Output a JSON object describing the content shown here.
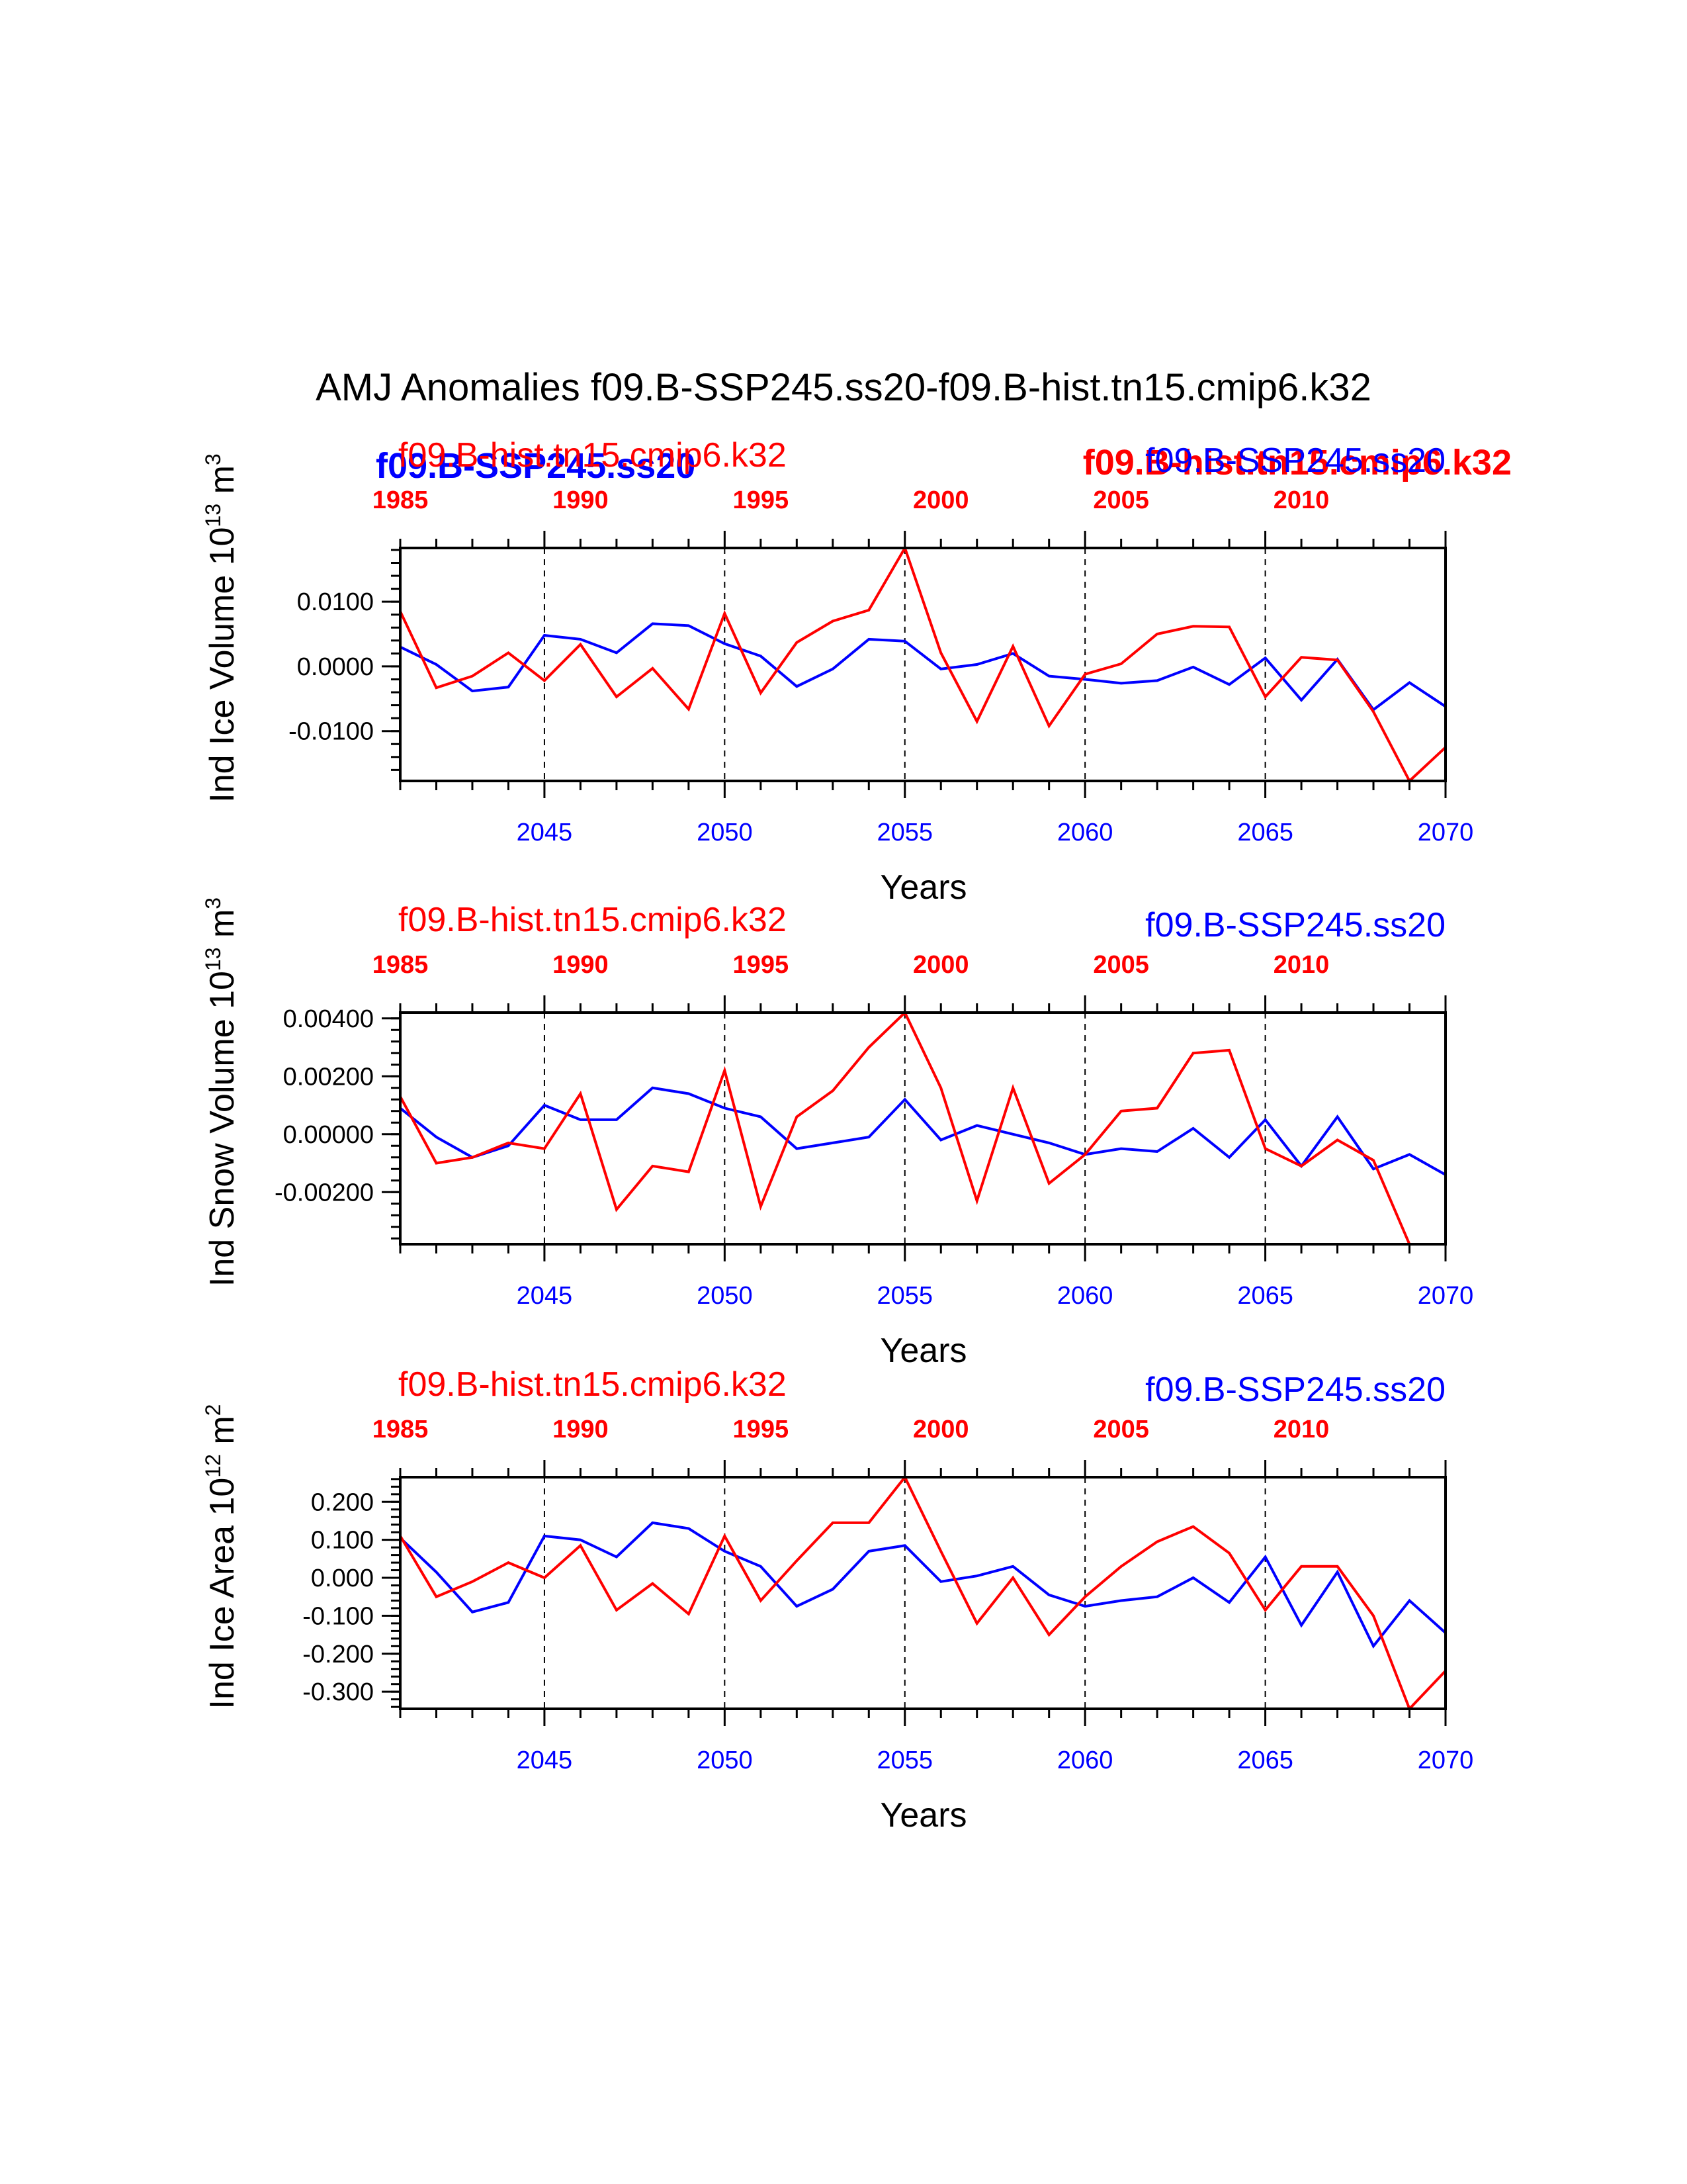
{
  "page_title": "AMJ Anomalies f09.B-SSP245.ss20-f09.B-hist.tn15.cmip6.k32",
  "colors": {
    "exp_a": "#0000ff",
    "exp_b": "#ff0000",
    "axis": "#000000"
  },
  "overlay_labels": {
    "blue_bold": "f09.B-SSP245.ss20",
    "red_bold": "f09.B-hist.tn15.cmip6.k32"
  },
  "chart_data": [
    {
      "type": "line",
      "ylabel": "Ind Ice Volume 10",
      "ylabel_exp": "13",
      "ylabel_unit": " m",
      "ylabel_unit_exp": "3",
      "xlabel": "Years",
      "top_left_label": "f09.B-hist.tn15.cmip6.k32",
      "top_right_label": "f09.B-SSP245.ss20",
      "x": [
        2041,
        2042,
        2043,
        2044,
        2045,
        2046,
        2047,
        2048,
        2049,
        2050,
        2051,
        2052,
        2053,
        2054,
        2055,
        2056,
        2057,
        2058,
        2059,
        2060,
        2061,
        2062,
        2063,
        2064,
        2065,
        2066,
        2067,
        2068,
        2069,
        2070
      ],
      "xlim": [
        2041,
        2070
      ],
      "xticks": [
        2045,
        2050,
        2055,
        2060,
        2065,
        2070
      ],
      "xticklabels": [
        "2045",
        "2050",
        "2055",
        "2060",
        "2065",
        "2070"
      ],
      "top_ticks": [
        1985,
        1990,
        1995,
        2000,
        2005,
        2010
      ],
      "top_ticklabels": [
        "1985",
        "1990",
        "1995",
        "2000",
        "2005",
        "2010"
      ],
      "top_offset": 56,
      "ylim": [
        -0.0177,
        0.0183
      ],
      "yticks": [
        -0.01,
        0.0,
        0.01
      ],
      "yticklabels": [
        "-0.0100",
        "0.0000",
        "0.0100"
      ],
      "yminor": 0.002,
      "series": [
        {
          "name": "f09.B-SSP245.ss20",
          "color": "#0000ff",
          "values": [
            0.003,
            0.0003,
            -0.0038,
            -0.0032,
            0.0048,
            0.0042,
            0.0021,
            0.0066,
            0.0063,
            0.0035,
            0.0016,
            -0.0031,
            -0.0004,
            0.0042,
            0.0039,
            -0.0004,
            0.0003,
            0.002,
            -0.0015,
            -0.002,
            -0.0026,
            -0.0022,
            -0.0001,
            -0.0028,
            0.0013,
            -0.0052,
            0.0011,
            -0.0067,
            -0.0025,
            -0.0062
          ]
        },
        {
          "name": "f09.B-hist.tn15.cmip6.k32",
          "color": "#ff0000",
          "values": [
            0.0085,
            -0.0033,
            -0.0015,
            0.0021,
            -0.0022,
            0.0034,
            -0.0047,
            -0.0003,
            -0.0066,
            0.0082,
            -0.0041,
            0.0037,
            0.007,
            0.0087,
            0.0183,
            0.0021,
            -0.0085,
            0.0031,
            -0.0092,
            -0.0012,
            0.0004,
            0.005,
            0.0062,
            0.0061,
            -0.0047,
            0.0014,
            0.001,
            -0.007,
            -0.0177,
            -0.0125
          ]
        }
      ]
    },
    {
      "type": "line",
      "ylabel": "Ind Snow Volume 10",
      "ylabel_exp": "13",
      "ylabel_unit": " m",
      "ylabel_unit_exp": "3",
      "xlabel": "Years",
      "top_left_label": "f09.B-hist.tn15.cmip6.k32",
      "top_right_label": "f09.B-SSP245.ss20",
      "x": [
        2041,
        2042,
        2043,
        2044,
        2045,
        2046,
        2047,
        2048,
        2049,
        2050,
        2051,
        2052,
        2053,
        2054,
        2055,
        2056,
        2057,
        2058,
        2059,
        2060,
        2061,
        2062,
        2063,
        2064,
        2065,
        2066,
        2067,
        2068,
        2069,
        2070
      ],
      "xlim": [
        2041,
        2070
      ],
      "xticks": [
        2045,
        2050,
        2055,
        2060,
        2065,
        2070
      ],
      "xticklabels": [
        "2045",
        "2050",
        "2055",
        "2060",
        "2065",
        "2070"
      ],
      "top_ticks": [
        1985,
        1990,
        1995,
        2000,
        2005,
        2010
      ],
      "top_ticklabels": [
        "1985",
        "1990",
        "1995",
        "2000",
        "2005",
        "2010"
      ],
      "top_offset": 56,
      "ylim": [
        -0.0038,
        0.0042
      ],
      "yticks": [
        -0.002,
        0.0,
        0.002,
        0.004
      ],
      "yticklabels": [
        "-0.00200",
        "0.00000",
        "0.00200",
        "0.00400"
      ],
      "yminor": 0.0004,
      "series": [
        {
          "name": "f09.B-SSP245.ss20",
          "color": "#0000ff",
          "values": [
            0.0009,
            -0.0001,
            -0.0008,
            -0.0004,
            0.001,
            0.0005,
            0.0005,
            0.0016,
            0.0014,
            0.0009,
            0.0006,
            -0.0005,
            -0.0003,
            -0.0001,
            0.0012,
            -0.0002,
            0.0003,
            0.0,
            -0.0003,
            -0.0007,
            -0.0005,
            -0.0006,
            0.0002,
            -0.0008,
            0.0005,
            -0.0011,
            0.0006,
            -0.0012,
            -0.0007,
            -0.0014
          ]
        },
        {
          "name": "f09.B-hist.tn15.cmip6.k32",
          "color": "#ff0000",
          "values": [
            0.0013,
            -0.001,
            -0.0008,
            -0.0003,
            -0.0005,
            0.0014,
            -0.0026,
            -0.0011,
            -0.0013,
            0.0022,
            -0.0025,
            0.0006,
            0.0015,
            0.003,
            0.0042,
            0.0016,
            -0.0023,
            0.0016,
            -0.0017,
            -0.0007,
            0.0008,
            0.0009,
            0.0028,
            0.0029,
            -0.0005,
            -0.0011,
            -0.0002,
            -0.0009,
            -0.0038,
            -0.0038
          ]
        }
      ]
    },
    {
      "type": "line",
      "ylabel": "Ind Ice Area 10",
      "ylabel_exp": "12",
      "ylabel_unit": " m",
      "ylabel_unit_exp": "2",
      "xlabel": "Years",
      "top_left_label": "f09.B-hist.tn15.cmip6.k32",
      "top_right_label": "f09.B-SSP245.ss20",
      "x": [
        2041,
        2042,
        2043,
        2044,
        2045,
        2046,
        2047,
        2048,
        2049,
        2050,
        2051,
        2052,
        2053,
        2054,
        2055,
        2056,
        2057,
        2058,
        2059,
        2060,
        2061,
        2062,
        2063,
        2064,
        2065,
        2066,
        2067,
        2068,
        2069,
        2070
      ],
      "xlim": [
        2041,
        2070
      ],
      "xticks": [
        2045,
        2050,
        2055,
        2060,
        2065,
        2070
      ],
      "xticklabels": [
        "2045",
        "2050",
        "2055",
        "2060",
        "2065",
        "2070"
      ],
      "top_ticks": [
        1985,
        1990,
        1995,
        2000,
        2005,
        2010
      ],
      "top_ticklabels": [
        "1985",
        "1990",
        "1995",
        "2000",
        "2005",
        "2010"
      ],
      "top_offset": 56,
      "ylim": [
        -0.345,
        0.265
      ],
      "yticks": [
        -0.3,
        -0.2,
        -0.1,
        0.0,
        0.1,
        0.2
      ],
      "yticklabels": [
        "-0.300",
        "-0.200",
        "-0.100",
        "0.000",
        "0.100",
        "0.200"
      ],
      "yminor": 0.02,
      "series": [
        {
          "name": "f09.B-SSP245.ss20",
          "color": "#0000ff",
          "values": [
            0.105,
            0.015,
            -0.09,
            -0.065,
            0.11,
            0.1,
            0.055,
            0.145,
            0.13,
            0.07,
            0.03,
            -0.075,
            -0.03,
            0.07,
            0.085,
            -0.01,
            0.005,
            0.03,
            -0.045,
            -0.075,
            -0.06,
            -0.05,
            0.0,
            -0.065,
            0.055,
            -0.125,
            0.015,
            -0.18,
            -0.06,
            -0.145
          ]
        },
        {
          "name": "f09.B-hist.tn15.cmip6.k32",
          "color": "#ff0000",
          "values": [
            0.11,
            -0.05,
            -0.01,
            0.04,
            0.0,
            0.085,
            -0.085,
            -0.015,
            -0.095,
            0.11,
            -0.06,
            0.045,
            0.145,
            0.145,
            0.265,
            0.07,
            -0.12,
            0.0,
            -0.15,
            -0.05,
            0.03,
            0.095,
            0.135,
            0.065,
            -0.085,
            0.03,
            0.03,
            -0.1,
            -0.345,
            -0.245
          ]
        }
      ]
    }
  ]
}
